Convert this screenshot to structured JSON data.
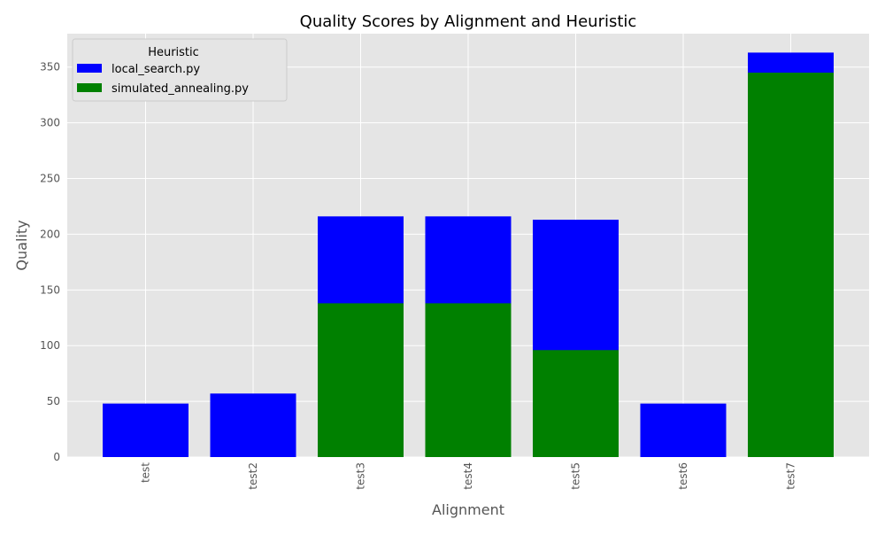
{
  "chart_data": {
    "type": "bar",
    "stacked": false,
    "overlay": true,
    "title": "Quality Scores by Alignment and Heuristic",
    "xlabel": "Alignment",
    "ylabel": "Quality",
    "categories": [
      "test",
      "test2",
      "test3",
      "test4",
      "test5",
      "test6",
      "test7"
    ],
    "series": [
      {
        "name": "local_search.py",
        "color": "#0000ff",
        "values": [
          48,
          57,
          216,
          216,
          213,
          48,
          363
        ]
      },
      {
        "name": "simulated_annealing.py",
        "color": "#008000",
        "values": [
          0,
          0,
          138,
          138,
          96,
          0,
          345
        ]
      }
    ],
    "ylim": [
      0,
      380
    ],
    "yticks": [
      0,
      50,
      100,
      150,
      200,
      250,
      300,
      350
    ],
    "legend": {
      "title": "Heuristic",
      "placement": "top-left"
    },
    "grid": true,
    "style": "ggplot"
  }
}
